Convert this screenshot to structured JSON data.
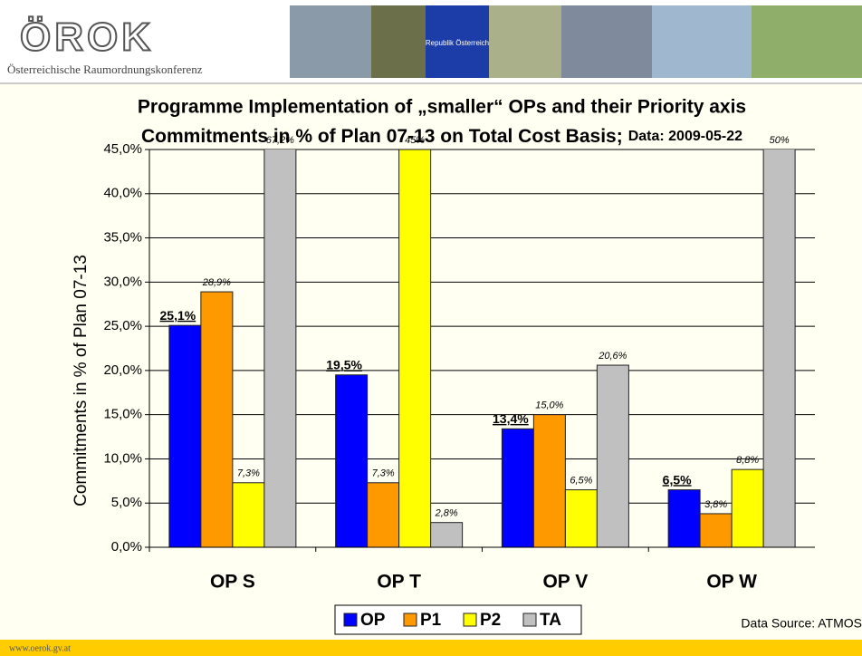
{
  "header": {
    "logo": "ÖROK",
    "organisation": "Österreichische Raumordnungskonferenz",
    "flag_text": "Republik Österreich"
  },
  "footer": {
    "url": "www.oerok.gv.at"
  },
  "chart_data": {
    "type": "bar",
    "title": "Programme Implementation of „smaller“ OPs and their Priority axis",
    "subtitle": "Commitments in % of Plan 07-13 on Total Cost Basis;",
    "data_note": "Data: 2009-05-22",
    "y_label": "Commitments in % of Plan 07-13",
    "source": "Data Source: ATMOS",
    "categories": [
      "OP S",
      "OP T",
      "OP V",
      "OP W"
    ],
    "series": [
      {
        "name": "OP",
        "color": "#0000ff",
        "values": [
          25.1,
          19.5,
          13.4,
          6.5
        ],
        "value_labels": [
          "25,1%",
          "19,5%",
          "13,4%",
          "6,5%"
        ]
      },
      {
        "name": "P1",
        "color": "#ff9900",
        "values": [
          28.9,
          7.3,
          15.0,
          3.8
        ],
        "value_labels": [
          "28,9%",
          "7,3%",
          "15,0%",
          "3,8%"
        ]
      },
      {
        "name": "P2",
        "color": "#ffff00",
        "values": [
          7.3,
          45,
          6.5,
          8.8
        ],
        "value_labels": [
          "7,3%",
          "45%",
          "6,5%",
          "8,8%"
        ]
      },
      {
        "name": "TA",
        "color": "#c0c0c0",
        "values": [
          67.2,
          2.8,
          20.6,
          50
        ],
        "value_labels": [
          "67,2%",
          "2,8%",
          "20,6%",
          "50%"
        ]
      }
    ],
    "ylim": [
      0,
      45
    ],
    "yticks": [
      {
        "value": 0,
        "label": "0,0%"
      },
      {
        "value": 5,
        "label": "5,0%"
      },
      {
        "value": 10,
        "label": "10,0%"
      },
      {
        "value": 15,
        "label": "15,0%"
      },
      {
        "value": 20,
        "label": "20,0%"
      },
      {
        "value": 25,
        "label": "25,0%"
      },
      {
        "value": 30,
        "label": "30,0%"
      },
      {
        "value": 35,
        "label": "35,0%"
      },
      {
        "value": 40,
        "label": "40,0%"
      },
      {
        "value": 45,
        "label": "45,0%"
      }
    ],
    "legend": "bottom"
  }
}
